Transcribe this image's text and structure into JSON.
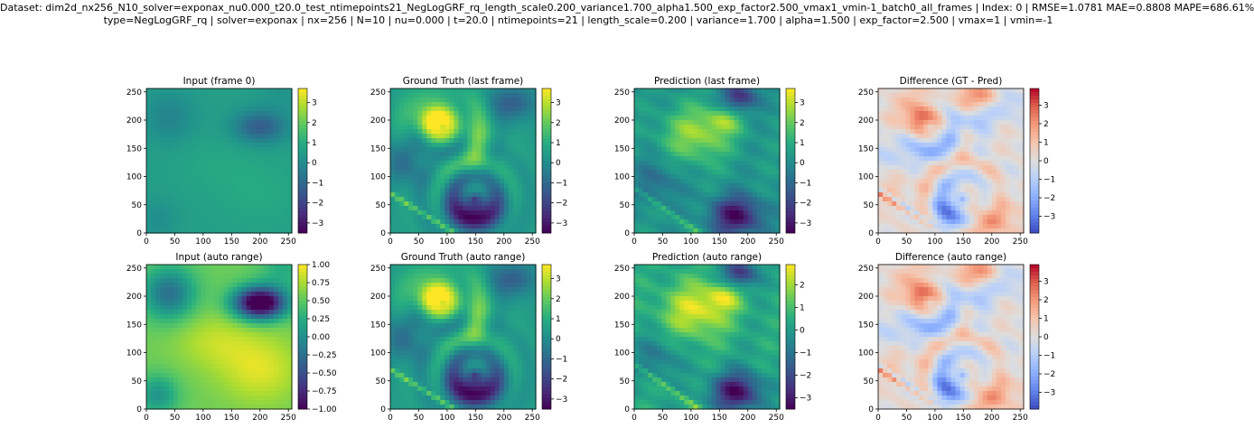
{
  "header": {
    "line1": "Dataset: dim2d_nx256_N10_solver=exponax_nu0.000_t20.0_test_ntimepoints21_NegLogGRF_rq_length_scale0.200_variance1.700_alpha1.500_exp_factor2.500_vmax1_vmin-1_batch0_all_frames | Index: 0 | RMSE=1.0781  MAE=0.8808  MAPE=686.61%",
    "line2": "type=NegLogGRF_rq | solver=exponax | nx=256 | N=10 | nu=0.000 | t=20.0 | ntimepoints=21 | length_scale=0.200 | variance=1.700 | alpha=1.500 | exp_factor=2.500 | vmax=1 | vmin=-1"
  },
  "chart_data": [
    {
      "type": "heatmap",
      "title": "Input (frame 0)",
      "field": "input",
      "colormap": "viridis",
      "xlim": [
        0,
        256
      ],
      "ylim": [
        0,
        256
      ],
      "xticks": [
        0,
        50,
        100,
        150,
        200,
        250
      ],
      "yticks": [
        0,
        50,
        100,
        150,
        200,
        250
      ],
      "colorbar": {
        "range": [
          -3.5,
          3.7
        ],
        "ticks": [
          3,
          2,
          1,
          0,
          -1,
          -2,
          -3
        ]
      }
    },
    {
      "type": "heatmap",
      "title": "Ground Truth (last frame)",
      "field": "gt",
      "colormap": "viridis",
      "xlim": [
        0,
        256
      ],
      "ylim": [
        0,
        256
      ],
      "xticks": [
        0,
        50,
        100,
        150,
        200,
        250
      ],
      "yticks": [
        0,
        50,
        100,
        150,
        200,
        250
      ],
      "colorbar": {
        "range": [
          -3.5,
          3.7
        ],
        "ticks": [
          3,
          2,
          1,
          0,
          -1,
          -2,
          -3
        ]
      }
    },
    {
      "type": "heatmap",
      "title": "Prediction (last frame)",
      "field": "pred",
      "colormap": "viridis",
      "xlim": [
        0,
        256
      ],
      "ylim": [
        0,
        256
      ],
      "xticks": [
        0,
        50,
        100,
        150,
        200,
        250
      ],
      "yticks": [
        0,
        50,
        100,
        150,
        200,
        250
      ],
      "colorbar": {
        "range": [
          -3.5,
          3.7
        ],
        "ticks": [
          3,
          2,
          1,
          0,
          -1,
          -2,
          -3
        ]
      }
    },
    {
      "type": "heatmap",
      "title": "Difference (GT - Pred)",
      "field": "diff",
      "colormap": "coolwarm",
      "xlim": [
        0,
        256
      ],
      "ylim": [
        0,
        256
      ],
      "xticks": [
        0,
        50,
        100,
        150,
        200,
        250
      ],
      "yticks": [
        0,
        50,
        100,
        150,
        200,
        250
      ],
      "colorbar": {
        "range": [
          -3.9,
          3.9
        ],
        "ticks": [
          3,
          2,
          1,
          0,
          -1,
          -2,
          -3
        ]
      }
    },
    {
      "type": "heatmap",
      "title": "Input (auto range)",
      "field": "input",
      "colormap": "viridis",
      "xlim": [
        0,
        256
      ],
      "ylim": [
        0,
        256
      ],
      "xticks": [
        0,
        50,
        100,
        150,
        200,
        250
      ],
      "yticks": [
        0,
        50,
        100,
        150,
        200,
        250
      ],
      "colorbar": {
        "range": [
          -1,
          1
        ],
        "ticks": [
          1.0,
          0.75,
          0.5,
          0.25,
          0.0,
          -0.25,
          -0.5,
          -0.75,
          -1.0
        ],
        "decimals": 2
      }
    },
    {
      "type": "heatmap",
      "title": "Ground Truth (auto range)",
      "field": "gt",
      "colormap": "viridis",
      "xlim": [
        0,
        256
      ],
      "ylim": [
        0,
        256
      ],
      "xticks": [
        0,
        50,
        100,
        150,
        200,
        250
      ],
      "yticks": [
        0,
        50,
        100,
        150,
        200,
        250
      ],
      "colorbar": {
        "range": [
          -3.5,
          3.7
        ],
        "ticks": [
          3,
          2,
          1,
          0,
          -1,
          -2,
          -3
        ]
      }
    },
    {
      "type": "heatmap",
      "title": "Prediction (auto range)",
      "field": "pred",
      "colormap": "viridis",
      "xlim": [
        0,
        256
      ],
      "ylim": [
        0,
        256
      ],
      "xticks": [
        0,
        50,
        100,
        150,
        200,
        250
      ],
      "yticks": [
        0,
        50,
        100,
        150,
        200,
        250
      ],
      "colorbar": {
        "range": [
          -3.5,
          2.9
        ],
        "ticks": [
          2,
          1,
          0,
          -1,
          -2,
          -3
        ]
      }
    },
    {
      "type": "heatmap",
      "title": "Difference (auto range)",
      "field": "diff",
      "colormap": "coolwarm",
      "xlim": [
        0,
        256
      ],
      "ylim": [
        0,
        256
      ],
      "xticks": [
        0,
        50,
        100,
        150,
        200,
        250
      ],
      "yticks": [
        0,
        50,
        100,
        150,
        200,
        250
      ],
      "colorbar": {
        "range": [
          -3.9,
          3.9
        ],
        "ticks": [
          3,
          2,
          1,
          0,
          -1,
          -2,
          -3
        ]
      }
    }
  ]
}
